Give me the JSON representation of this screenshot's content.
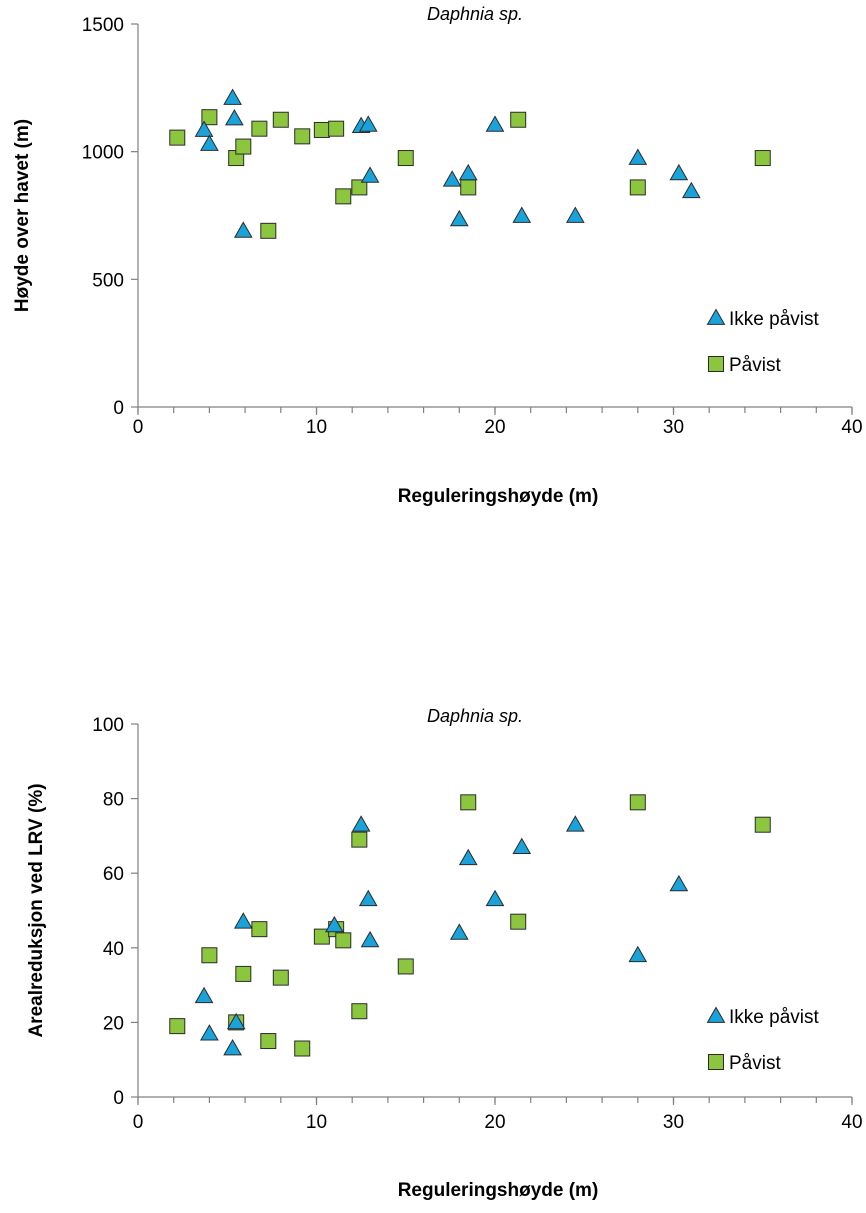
{
  "colors": {
    "triangle": "#1AA3DB",
    "square": "#8CC63F",
    "stroke": "#2b2b2b",
    "axis": "#808080"
  },
  "chart_data": [
    {
      "type": "scatter",
      "title": "Daphnia sp.",
      "xlabel": "Reguleringshøyde (m)",
      "ylabel": "Høyde over havet (m)",
      "xlim": [
        0,
        40
      ],
      "ylim": [
        0,
        1500
      ],
      "xticks": [
        0,
        10,
        20,
        30,
        40
      ],
      "yticks": [
        0,
        500,
        1000,
        1500
      ],
      "xtick_labels": [
        "0",
        "10",
        "20",
        "30",
        "40"
      ],
      "ytick_labels": [
        "0",
        "500",
        "1000",
        "1500"
      ],
      "legend_position": "right",
      "series": [
        {
          "name": "Ikke påvist",
          "marker": "triangle",
          "x": [
            3.7,
            4.0,
            5.3,
            5.4,
            5.9,
            12.5,
            12.9,
            13.0,
            17.6,
            18.0,
            18.5,
            20.0,
            21.5,
            24.5,
            28.0,
            30.3,
            31.0
          ],
          "y": [
            1085,
            1030,
            1210,
            1130,
            690,
            1100,
            1105,
            905,
            890,
            735,
            915,
            1105,
            748,
            748,
            975,
            915,
            845
          ]
        },
        {
          "name": "Påvist",
          "marker": "square",
          "x": [
            2.2,
            4.0,
            5.5,
            5.9,
            6.8,
            8.0,
            9.2,
            10.3,
            11.1,
            11.5,
            12.4,
            15.0,
            18.5,
            21.3,
            28.0,
            35.0,
            7.3
          ],
          "y": [
            1055,
            1135,
            975,
            1020,
            1090,
            1125,
            1060,
            1085,
            1090,
            825,
            860,
            975,
            860,
            1125,
            860,
            975,
            690
          ]
        }
      ]
    },
    {
      "type": "scatter",
      "title": "Daphnia sp.",
      "xlabel": "Reguleringshøyde (m)",
      "ylabel": "Arealreduksjon ved LRV (%)",
      "xlim": [
        0,
        40
      ],
      "ylim": [
        0,
        100
      ],
      "xticks": [
        0,
        10,
        20,
        30,
        40
      ],
      "yticks": [
        0,
        20,
        40,
        60,
        80,
        100
      ],
      "xtick_labels": [
        "0",
        "10",
        "20",
        "30",
        "40"
      ],
      "ytick_labels": [
        "0",
        "20",
        "40",
        "60",
        "80",
        "100"
      ],
      "legend_position": "right",
      "series": [
        {
          "name": "Ikke påvist",
          "marker": "triangle",
          "x": [
            3.7,
            4.0,
            5.3,
            5.5,
            5.9,
            11.0,
            12.5,
            12.9,
            13.0,
            18.0,
            18.5,
            20.0,
            21.5,
            24.5,
            28.0,
            30.3
          ],
          "y": [
            27,
            17,
            13,
            20,
            47,
            46,
            73,
            53,
            42,
            44,
            64,
            53,
            67,
            73,
            38,
            57
          ]
        },
        {
          "name": "Påvist",
          "marker": "square",
          "x": [
            2.2,
            4.0,
            5.5,
            5.9,
            6.8,
            7.3,
            8.0,
            9.2,
            10.3,
            11.1,
            11.5,
            12.4,
            12.4,
            15.0,
            18.5,
            21.3,
            28.0,
            35.0
          ],
          "y": [
            19,
            38,
            20,
            33,
            45,
            15,
            32,
            13,
            43,
            45,
            42,
            69,
            23,
            35,
            79,
            47,
            79,
            73
          ]
        }
      ]
    }
  ]
}
